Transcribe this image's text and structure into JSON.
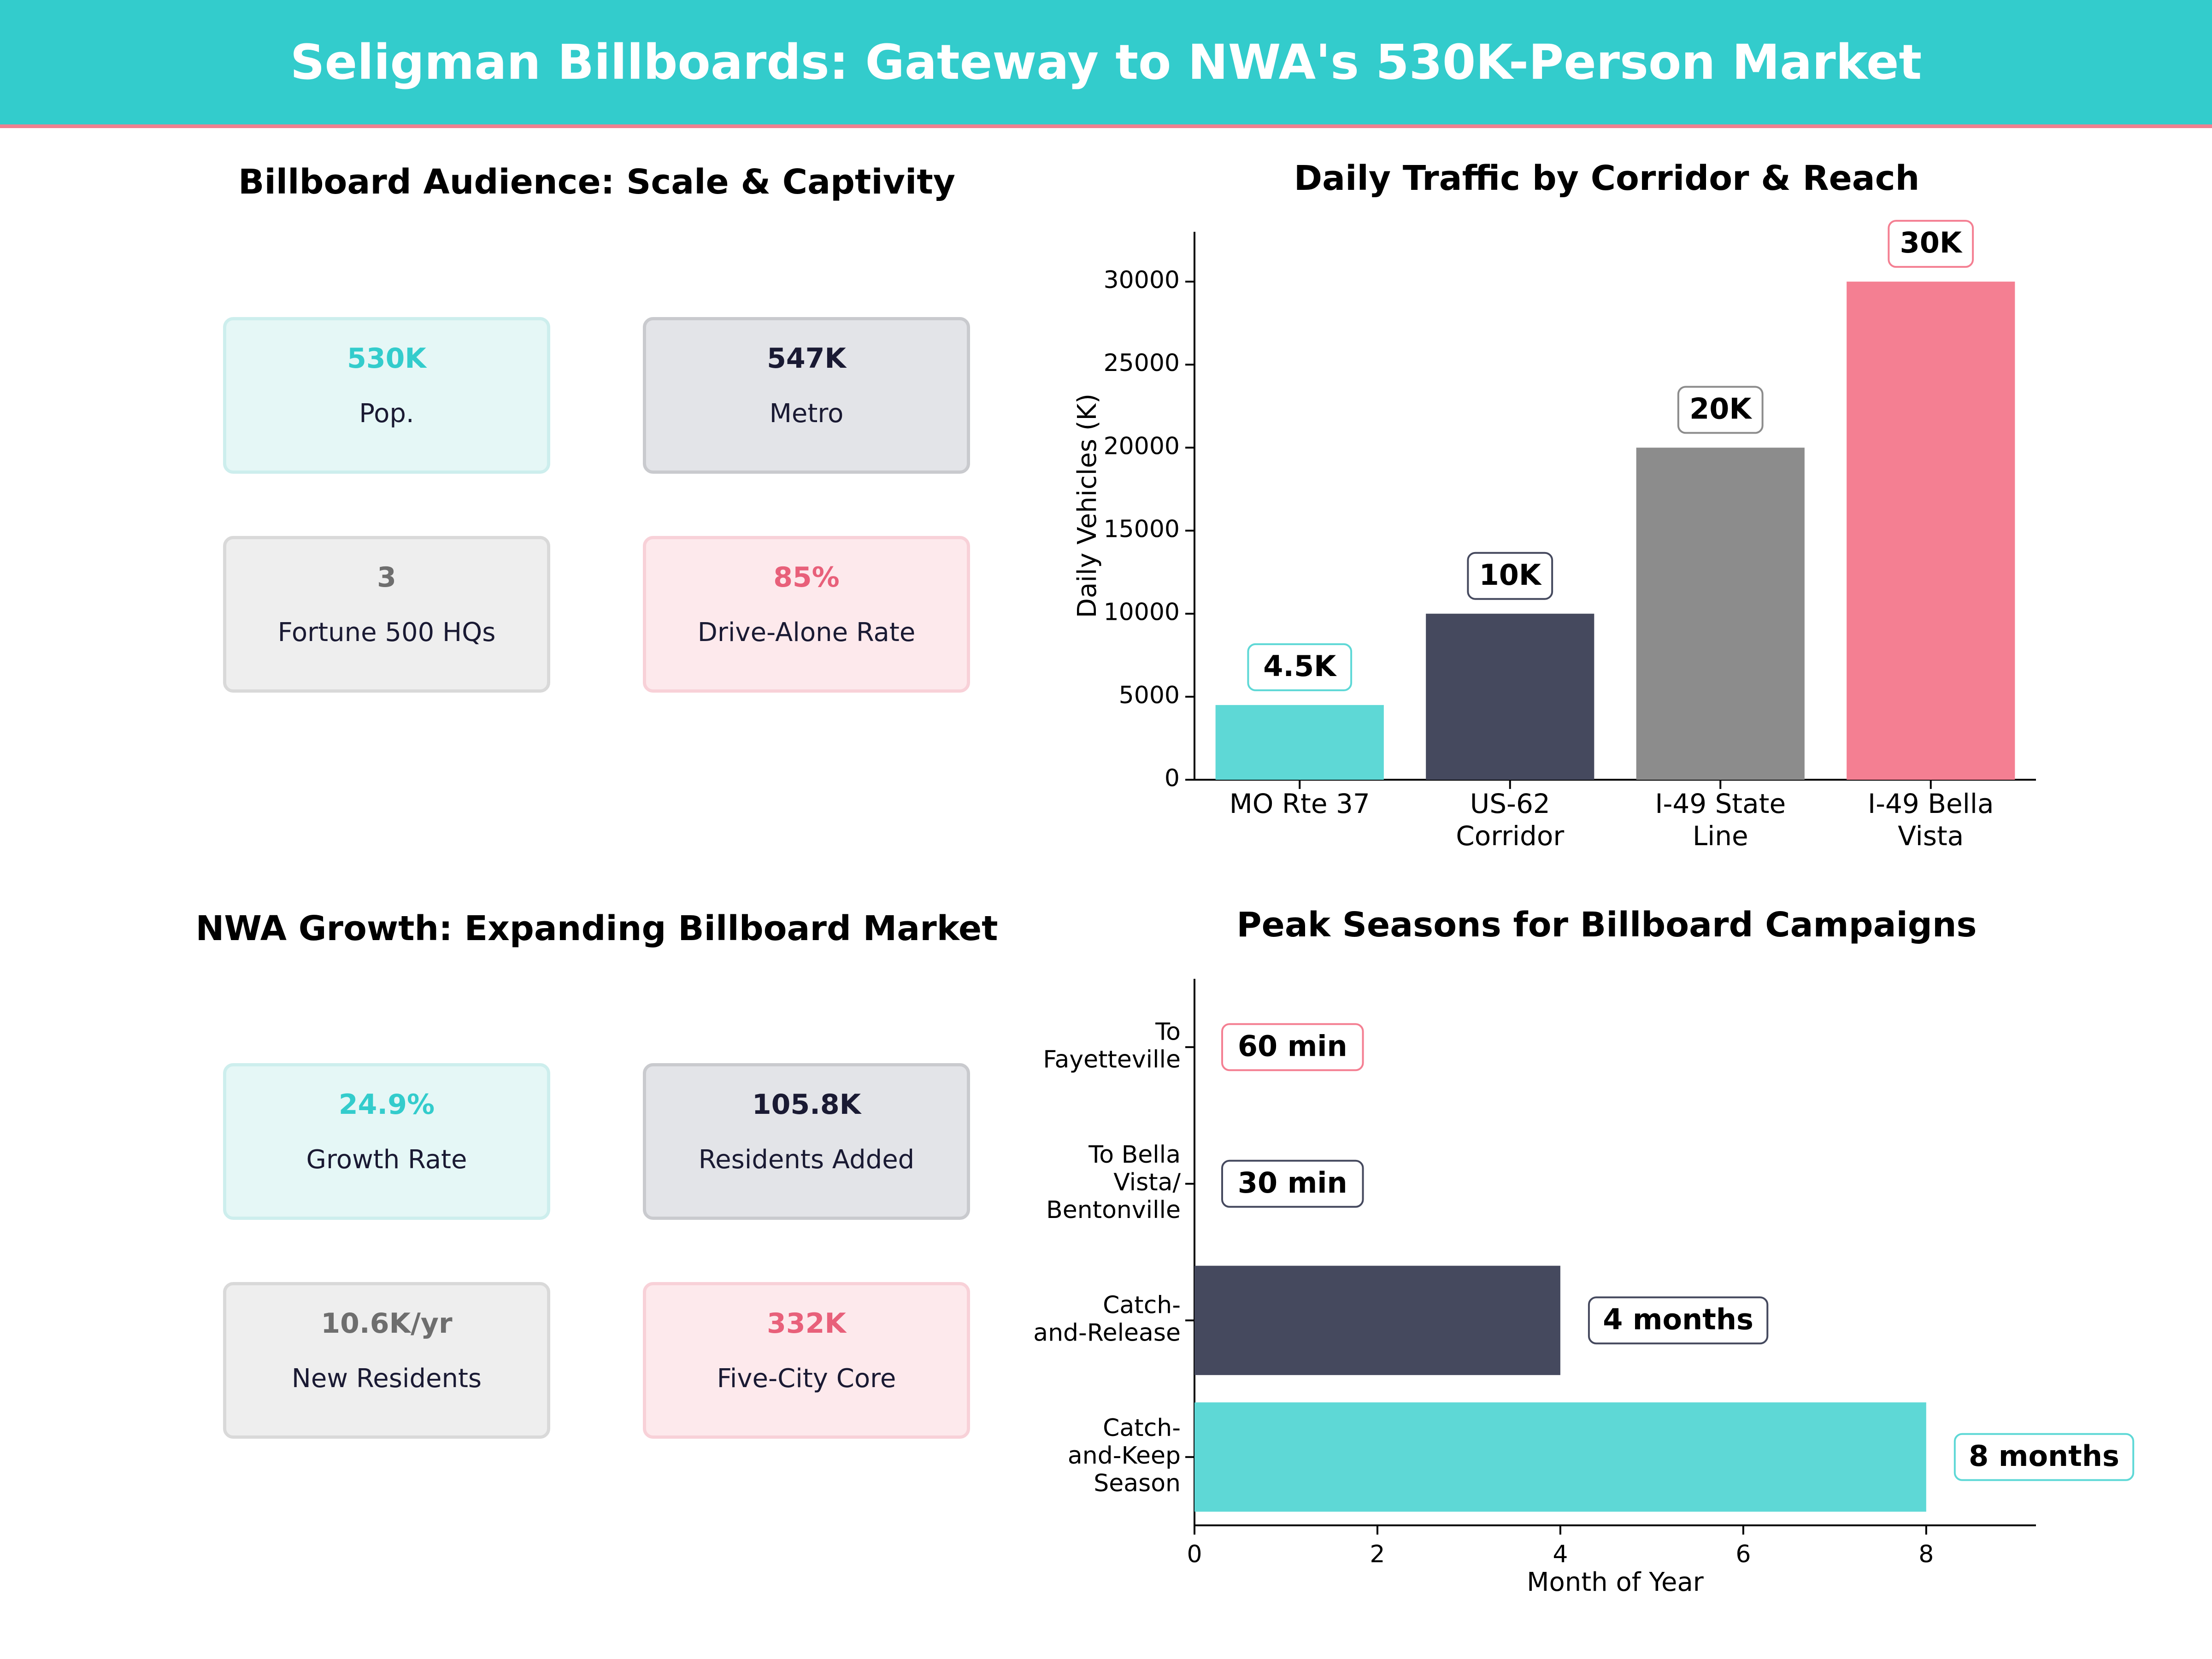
{
  "header": {
    "title": "Seligman Billboards: Gateway to NWA's 530K-Person Market"
  },
  "colors": {
    "teal": "#5ed8d6",
    "navy": "#45495e",
    "gray": "#8c8c8c",
    "pink": "#f47f92"
  },
  "panel_audience": {
    "title": "Billboard Audience: Scale & Captivity",
    "cards": [
      {
        "value": "530K",
        "label": "Pop."
      },
      {
        "value": "547K",
        "label": "Metro"
      },
      {
        "value": "3",
        "label": "Fortune 500 HQs"
      },
      {
        "value": "85%",
        "label": "Drive-Alone Rate"
      }
    ]
  },
  "panel_growth": {
    "title": "NWA Growth: Expanding Billboard Market",
    "cards": [
      {
        "value": "24.9%",
        "label": "Growth Rate"
      },
      {
        "value": "105.8K",
        "label": "Residents Added"
      },
      {
        "value": "10.6K/yr",
        "label": "New Residents"
      },
      {
        "value": "332K",
        "label": "Five-City Core"
      }
    ]
  },
  "chart_data": [
    {
      "type": "bar",
      "title": "Daily Traffic by Corridor & Reach",
      "xlabel": "",
      "ylabel": "Daily Vehicles (K)",
      "categories": [
        [
          "MO Rte 37"
        ],
        [
          "US-62",
          "Corridor"
        ],
        [
          "I-49 State",
          "Line"
        ],
        [
          "I-49 Bella",
          "Vista"
        ]
      ],
      "values": [
        4500,
        10000,
        20000,
        30000
      ],
      "data_labels": [
        "4.5K",
        "10K",
        "20K",
        "30K"
      ],
      "yticks": [
        0,
        5000,
        10000,
        15000,
        20000,
        25000,
        30000
      ],
      "ylim": [
        0,
        33000
      ],
      "grid": false
    },
    {
      "type": "bar",
      "orientation": "horizontal",
      "title": "Peak Seasons for Billboard Campaigns",
      "xlabel": "Month of Year",
      "ylabel": "",
      "categories": [
        [
          "Catch-",
          "and-Keep",
          "Season"
        ],
        [
          "Catch-",
          "and-Release"
        ],
        [
          "To Bella",
          "Vista/",
          "Bentonville"
        ],
        [
          "To",
          "Fayetteville"
        ]
      ],
      "values": [
        8,
        4,
        0,
        0
      ],
      "data_labels": [
        "8 months",
        "4 months",
        "30 min",
        "60 min"
      ],
      "xticks": [
        0,
        2,
        4,
        6,
        8
      ],
      "xlim": [
        0,
        9.2
      ],
      "grid": false
    }
  ]
}
